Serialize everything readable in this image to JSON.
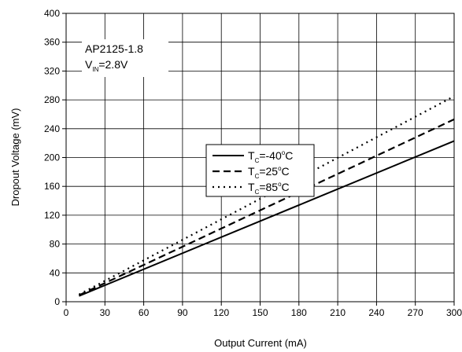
{
  "chart_data": {
    "type": "line",
    "title": "",
    "xlabel": "Output Current (mA)",
    "ylabel": "Dropout Voltage (mV)",
    "xlim": [
      0,
      300
    ],
    "ylim": [
      0,
      400
    ],
    "xticks": [
      "0",
      "30",
      "60",
      "90",
      "120",
      "150",
      "180",
      "210",
      "240",
      "270",
      "300"
    ],
    "yticks": [
      "0",
      "40",
      "80",
      "120",
      "160",
      "200",
      "240",
      "280",
      "320",
      "360",
      "400"
    ],
    "grid": true,
    "legend_position": "middle-left",
    "annotation": {
      "line1": "AP2125-1.8",
      "line2_main": "V",
      "line2_sub": "IN",
      "line2_rest": "=2.8V"
    },
    "series": [
      {
        "name": "TC=-40°C",
        "legend_main": "T",
        "legend_sub": "C",
        "legend_value": "=-40",
        "legend_degree": "o",
        "legend_unit": "C",
        "style": "solid",
        "x": [
          10,
          300
        ],
        "y": [
          8,
          223
        ]
      },
      {
        "name": "TC=25°C",
        "legend_main": "T",
        "legend_sub": "C",
        "legend_value": "=25",
        "legend_degree": "o",
        "legend_unit": "C",
        "style": "dashed",
        "x": [
          10,
          300
        ],
        "y": [
          9,
          253
        ]
      },
      {
        "name": "TC=85°C",
        "legend_main": "T",
        "legend_sub": "C",
        "legend_value": "=85",
        "legend_degree": "o",
        "legend_unit": "C",
        "style": "dotted",
        "x": [
          10,
          300
        ],
        "y": [
          10,
          285
        ]
      }
    ]
  }
}
